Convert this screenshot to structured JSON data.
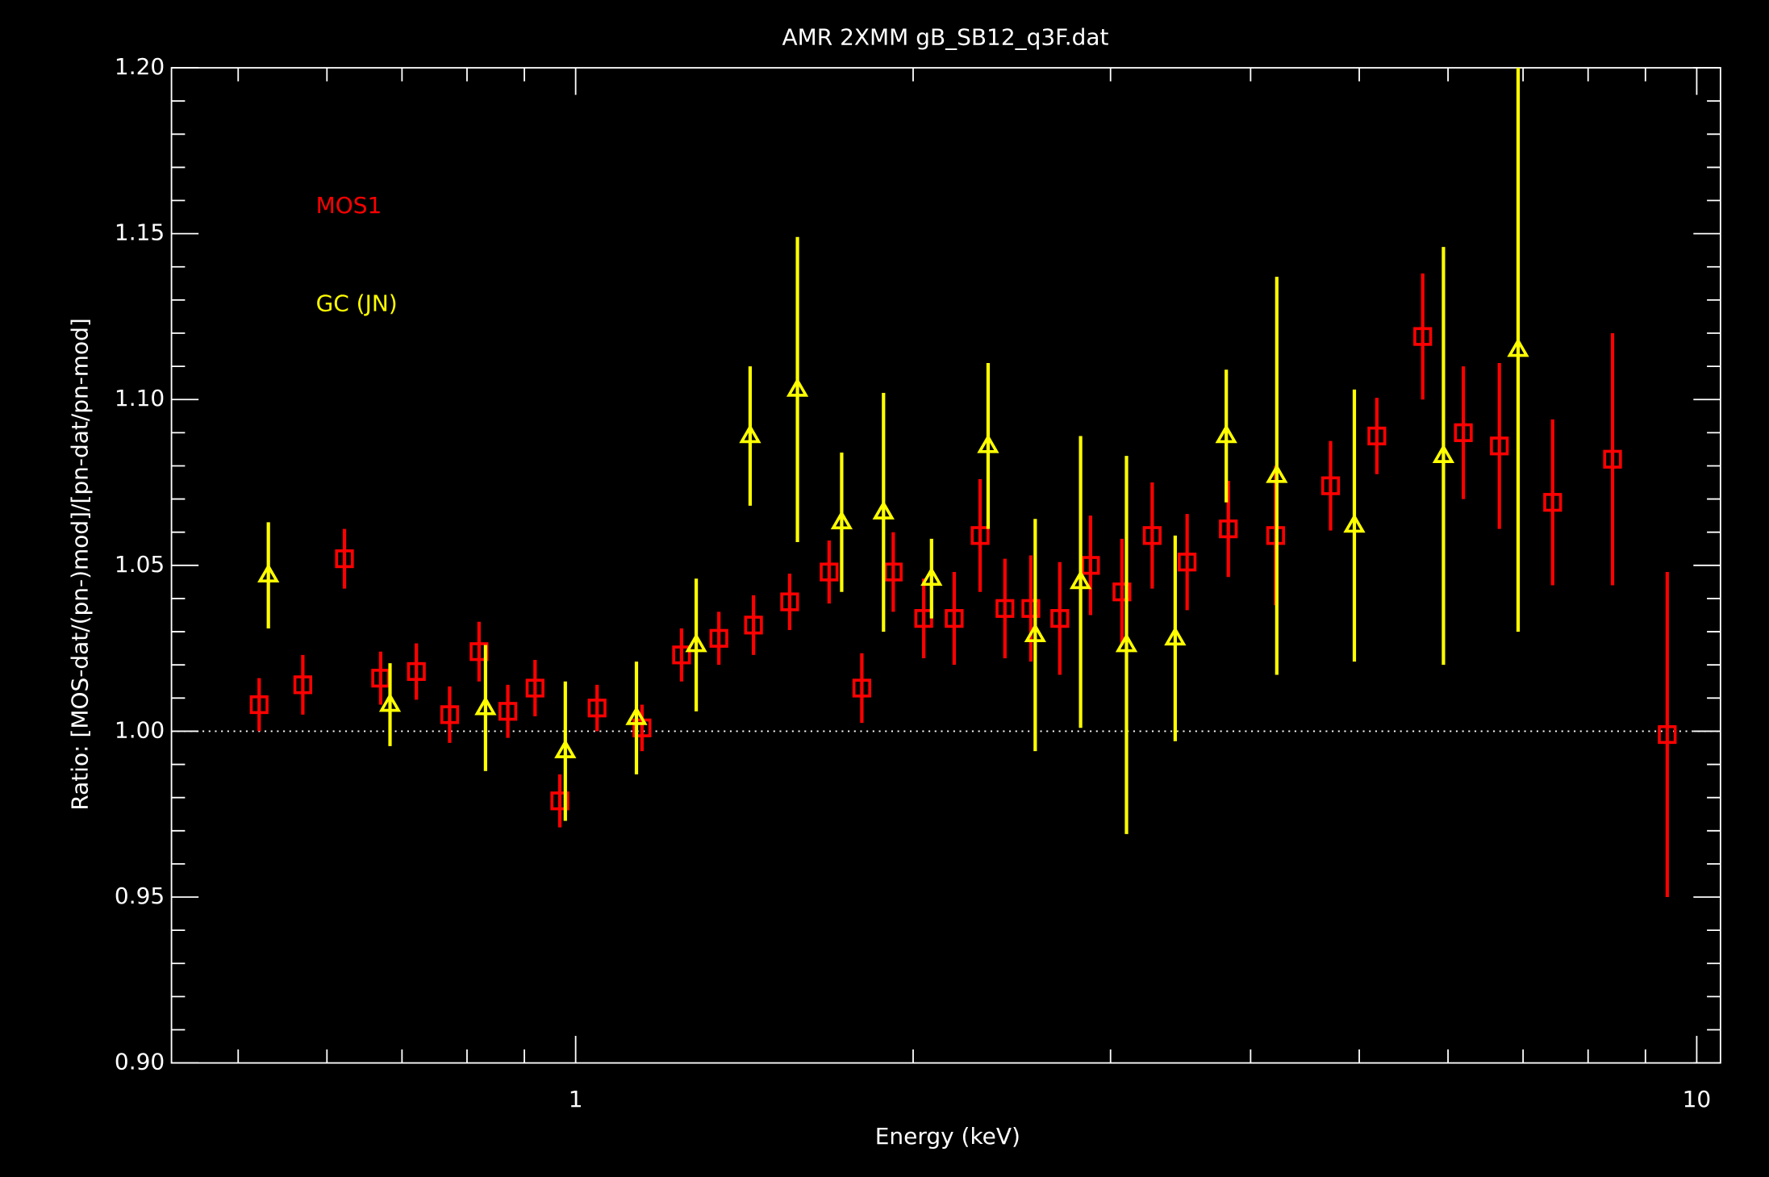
{
  "chart_data": {
    "type": "scatter",
    "title": "AMR 2XMM gB_SB12_q3F.dat",
    "x_label": "Energy (keV)",
    "y_label": "Ratio: [MOS-dat/(pn-)mod]/[pn-dat/pn-mod]",
    "x_scale": "log",
    "xlim": [
      0.436,
      10.5
    ],
    "xticks": [
      1,
      10
    ],
    "xminorticks": [
      0.5,
      0.6,
      0.7,
      0.8,
      0.9,
      2,
      3,
      4,
      5,
      6,
      7,
      8,
      9
    ],
    "ylim": [
      0.9,
      1.2
    ],
    "yticks": [
      {
        "value": 0.9,
        "label": "0.90"
      },
      {
        "value": 0.95,
        "label": "0.95"
      },
      {
        "value": 1.0,
        "label": "1.00"
      },
      {
        "value": 1.05,
        "label": "1.05"
      },
      {
        "value": 1.1,
        "label": "1.10"
      },
      {
        "value": 1.15,
        "label": "1.15"
      },
      {
        "value": 1.2,
        "label": "1.20"
      }
    ],
    "yminorticks": [
      0.92,
      0.93,
      0.94,
      0.96,
      0.97,
      0.98,
      0.99,
      1.01,
      1.02,
      1.03,
      1.04,
      1.06,
      1.07,
      1.08,
      1.09,
      1.11,
      1.12,
      1.13,
      1.14,
      1.16,
      1.17,
      1.18,
      1.19,
      0.91
    ],
    "reference_line": 1.0,
    "legend": "upper left",
    "series": [
      {
        "name": "MOS1",
        "color": "#ff0000",
        "marker": "square",
        "x": [
          0.522,
          0.571,
          0.622,
          0.67,
          0.721,
          0.772,
          0.82,
          0.87,
          0.92,
          0.968,
          1.045,
          1.146,
          1.243,
          1.342,
          1.441,
          1.552,
          1.683,
          1.8,
          1.92,
          2.044,
          2.176,
          2.295,
          2.415,
          2.547,
          2.703,
          2.879,
          3.071,
          3.268,
          3.511,
          3.821,
          4.211,
          4.714,
          5.184,
          5.696,
          6.192,
          6.667,
          7.438,
          8.412,
          9.412
        ],
        "values": [
          1.008,
          1.014,
          1.052,
          1.016,
          1.018,
          1.005,
          1.024,
          1.006,
          1.013,
          0.979,
          1.007,
          1.001,
          1.023,
          1.028,
          1.032,
          1.039,
          1.048,
          1.013,
          1.048,
          1.034,
          1.034,
          1.059,
          1.037,
          1.037,
          1.034,
          1.05,
          1.042,
          1.059,
          1.051,
          1.061,
          1.059,
          1.074,
          1.089,
          1.119,
          1.09,
          1.086,
          1.069,
          1.082,
          0.999
        ],
        "errors": [
          0.008,
          0.009,
          0.009,
          0.008,
          0.0085,
          0.0085,
          0.009,
          0.008,
          0.0085,
          0.008,
          0.007,
          0.007,
          0.008,
          0.008,
          0.009,
          0.0085,
          0.0095,
          0.0105,
          0.012,
          0.012,
          0.014,
          0.017,
          0.015,
          0.016,
          0.017,
          0.015,
          0.016,
          0.016,
          0.0145,
          0.0145,
          0.021,
          0.0135,
          0.0115,
          0.019,
          0.02,
          0.025,
          0.025,
          0.038,
          0.049
        ]
      },
      {
        "name": "GC (JN)",
        "color": "#ffff00",
        "marker": "triangle",
        "x": [
          0.532,
          0.683,
          0.831,
          0.979,
          1.133,
          1.281,
          1.431,
          1.577,
          1.727,
          1.882,
          2.077,
          2.333,
          2.57,
          2.821,
          3.1,
          3.426,
          3.805,
          4.221,
          4.95,
          5.944,
          6.929
        ],
        "values": [
          1.047,
          1.008,
          1.007,
          0.994,
          1.004,
          1.026,
          1.089,
          1.103,
          1.063,
          1.066,
          1.046,
          1.086,
          1.029,
          1.045,
          1.026,
          1.028,
          1.089,
          1.077,
          1.062,
          1.083,
          1.115
        ],
        "errors": [
          0.016,
          0.0125,
          0.019,
          0.021,
          0.017,
          0.02,
          0.021,
          0.046,
          0.021,
          0.036,
          0.012,
          0.025,
          0.035,
          0.044,
          0.057,
          0.031,
          0.02,
          0.06,
          0.041,
          0.063,
          0.085
        ]
      }
    ]
  }
}
